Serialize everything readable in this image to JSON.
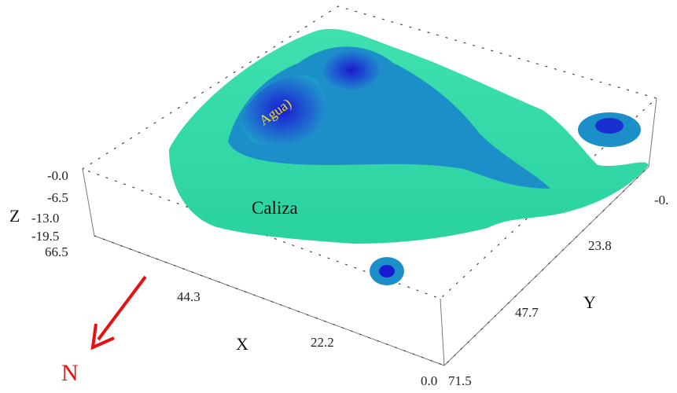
{
  "axes": {
    "z": {
      "label": "Z",
      "ticks": [
        "-0.0",
        "-6.5",
        "-13.0",
        "-19.5"
      ]
    },
    "x": {
      "label": "X",
      "ticks": [
        "66.5",
        "44.3",
        "22.2",
        "0.0"
      ]
    },
    "y": {
      "label": "Y",
      "ticks": [
        "-0.",
        "23.8",
        "47.7",
        "71.5"
      ]
    }
  },
  "annotations": {
    "water": "Agua)",
    "limestone": "Caliza"
  },
  "north": "N"
}
